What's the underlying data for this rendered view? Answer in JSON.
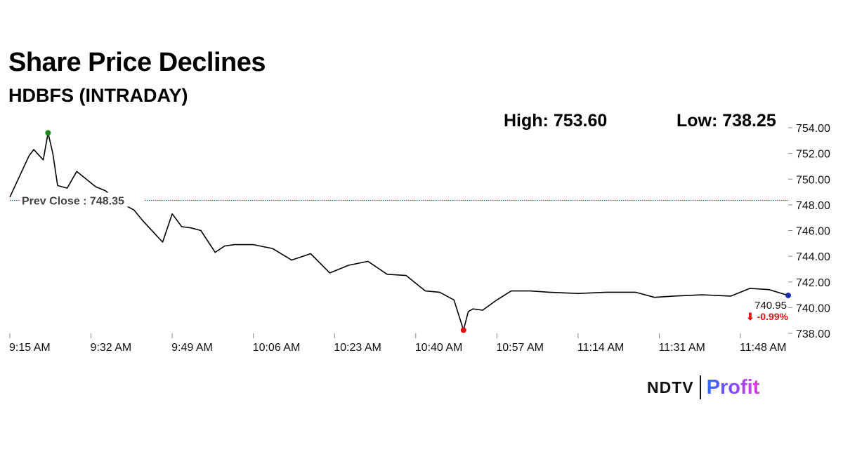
{
  "header": {
    "title": "Share Price Declines",
    "subtitle": "HDBFS (INTRADAY)",
    "high_label": "High: 753.60",
    "low_label": "Low: 738.25"
  },
  "brand": {
    "ndtv": "NDTV",
    "profit": "Profit"
  },
  "colors": {
    "line": "#000000",
    "prev_close_line": "#c62828",
    "high_marker": "#1b8a1b",
    "low_marker": "#e01010",
    "last_marker": "#1a2fb0",
    "change_negative": "#e01010"
  },
  "chart_data": {
    "type": "line",
    "series": [
      {
        "x": [
          "9:15 AM",
          "9:17 AM",
          "9:19 AM",
          "9:20 AM",
          "9:22 AM",
          "9:23 AM",
          "9:24 AM",
          "9:25 AM",
          "9:27 AM",
          "9:29 AM",
          "9:31 AM",
          "9:33 AM",
          "9:35 AM",
          "9:37 AM",
          "9:39 AM",
          "9:41 AM",
          "9:43 AM",
          "9:45 AM",
          "9:47 AM",
          "9:49 AM",
          "9:51 AM",
          "9:53 AM",
          "9:55 AM",
          "9:58 AM",
          "10:00 AM",
          "10:02 AM",
          "10:06 AM",
          "10:10 AM",
          "10:14 AM",
          "10:18 AM",
          "10:22 AM",
          "10:26 AM",
          "10:30 AM",
          "10:34 AM",
          "10:38 AM",
          "10:42 AM",
          "10:45 AM",
          "10:48 AM",
          "10:50 AM",
          "10:51 AM",
          "10:52 AM",
          "10:54 AM",
          "10:57 AM",
          "11:00 AM",
          "11:04 AM",
          "11:08 AM",
          "11:14 AM",
          "11:20 AM",
          "11:26 AM",
          "11:30 AM",
          "11:34 AM",
          "11:40 AM",
          "11:46 AM",
          "11:50 AM",
          "11:54 AM",
          "11:58 AM"
        ],
        "y": [
          748.6,
          750.2,
          751.8,
          752.3,
          751.5,
          753.6,
          752.0,
          749.5,
          749.3,
          750.6,
          750.0,
          749.4,
          749.1,
          748.5,
          748.0,
          747.6,
          746.7,
          745.9,
          745.1,
          747.3,
          746.3,
          746.2,
          746.0,
          744.3,
          744.8,
          744.9,
          744.9,
          744.6,
          743.7,
          744.2,
          742.7,
          743.3,
          743.6,
          742.6,
          742.5,
          741.3,
          741.2,
          740.6,
          738.25,
          739.7,
          739.9,
          739.8,
          740.6,
          741.3,
          741.3,
          741.2,
          741.1,
          741.2,
          741.2,
          740.8,
          740.9,
          741.0,
          740.9,
          741.5,
          741.4,
          740.95
        ]
      }
    ],
    "xticks": [
      "9:15 AM",
      "9:32 AM",
      "9:49 AM",
      "10:06 AM",
      "10:23 AM",
      "10:40 AM",
      "10:57 AM",
      "11:14 AM",
      "11:31 AM",
      "11:48 AM"
    ],
    "yticks": [
      "738.00",
      "740.00",
      "742.00",
      "744.00",
      "746.00",
      "748.00",
      "750.00",
      "752.00",
      "754.00"
    ],
    "ylim": [
      738,
      754
    ],
    "prev_close": 748.35,
    "prev_close_label": "Prev Close : 748.35",
    "high": 753.6,
    "high_time": "9:23 AM",
    "low": 738.25,
    "low_time": "10:50 AM",
    "last_value_label": "740.95",
    "change_label": "⬇ -0.99%",
    "y_axis_side": "right",
    "grid": false,
    "legend": "none"
  }
}
